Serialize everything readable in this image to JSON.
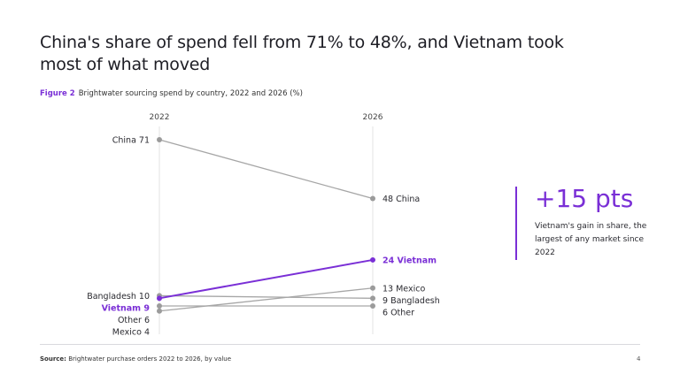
{
  "slide": {
    "title": "China's share of spend fell from 71% to 48%, and Vietnam took most of what moved",
    "figure_label": "Figure 2",
    "figure_caption": "Brightwater sourcing spend by country, 2022 and 2026 (%)",
    "callout": {
      "value": "+15 pts",
      "text": "Vietnam's gain in share, the largest of any market since 2022"
    },
    "source_label": "Source:",
    "source_text": "Brightwater purchase orders 2022 to 2026, by value",
    "page_number": "4"
  },
  "colors": {
    "accent": "#7a2fd6",
    "neutral_line": "#a6a6a6",
    "neutral_dot": "#9b9b9b",
    "axis": "#e3e3e3"
  },
  "chart_data": {
    "type": "slope",
    "x": [
      "2022",
      "2026"
    ],
    "series": [
      {
        "name": "China",
        "values": [
          71,
          48
        ],
        "highlight": false
      },
      {
        "name": "Vietnam",
        "values": [
          9,
          24
        ],
        "highlight": true
      },
      {
        "name": "Mexico",
        "values": [
          4,
          13
        ],
        "highlight": false
      },
      {
        "name": "Bangladesh",
        "values": [
          10,
          9
        ],
        "highlight": false
      },
      {
        "name": "Other",
        "values": [
          6,
          6
        ],
        "highlight": false
      }
    ]
  }
}
